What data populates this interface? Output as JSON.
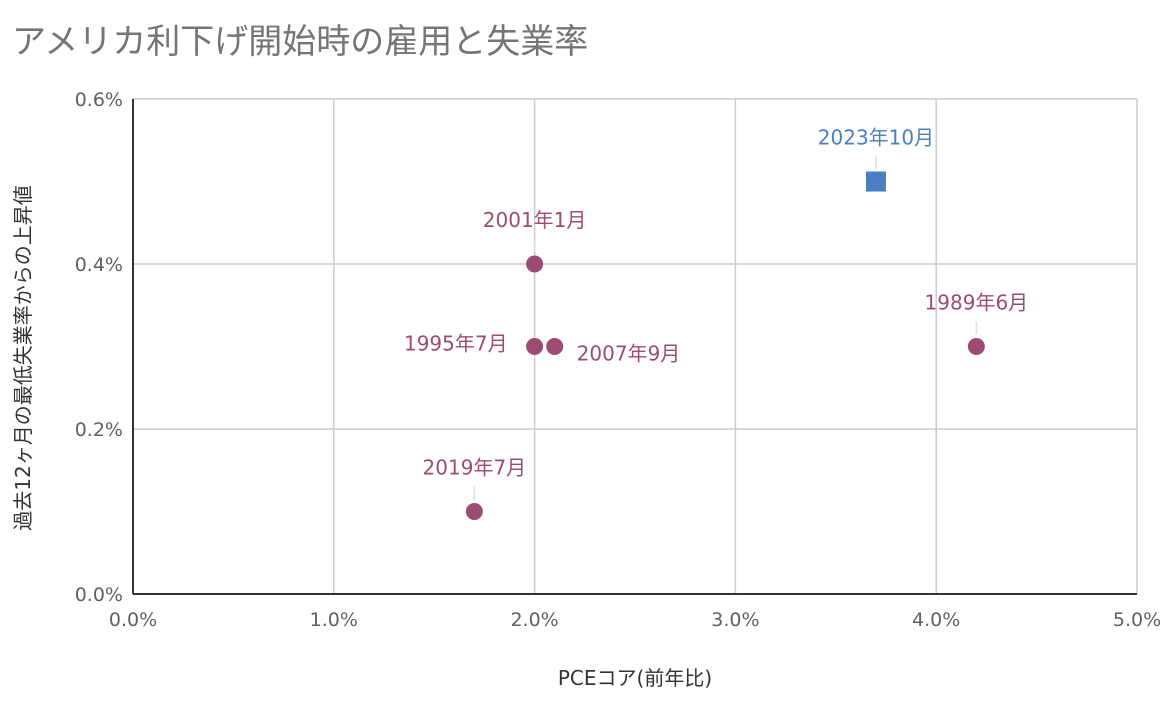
{
  "chart_data": {
    "type": "scatter",
    "title": "アメリカ利下げ開始時の雇用と失業率",
    "xlabel": "PCEコア(前年比)",
    "ylabel": "過去12ヶ月の最低失業率からの上昇値",
    "xlim": [
      0,
      5.0
    ],
    "ylim": [
      0,
      0.6
    ],
    "x_ticks": [
      "0.0%",
      "1.0%",
      "2.0%",
      "3.0%",
      "4.0%",
      "5.0%"
    ],
    "y_ticks": [
      "0.0%",
      "0.2%",
      "0.4%",
      "0.6%"
    ],
    "grid": true,
    "legend": "none",
    "series": [
      {
        "marker": "circle",
        "color": "#9c4b73",
        "points": [
          {
            "x": 2.0,
            "y": 0.4,
            "label": "2001年1月"
          },
          {
            "x": 2.0,
            "y": 0.3,
            "label": "1995年7月"
          },
          {
            "x": 2.1,
            "y": 0.3,
            "label": "2007年9月"
          },
          {
            "x": 4.2,
            "y": 0.3,
            "label": "1989年6月"
          },
          {
            "x": 1.7,
            "y": 0.1,
            "label": "2019年7月"
          }
        ]
      },
      {
        "marker": "square",
        "color": "#4a7fc6",
        "points": [
          {
            "x": 3.7,
            "y": 0.5,
            "label": "2023年10月"
          }
        ]
      }
    ]
  }
}
